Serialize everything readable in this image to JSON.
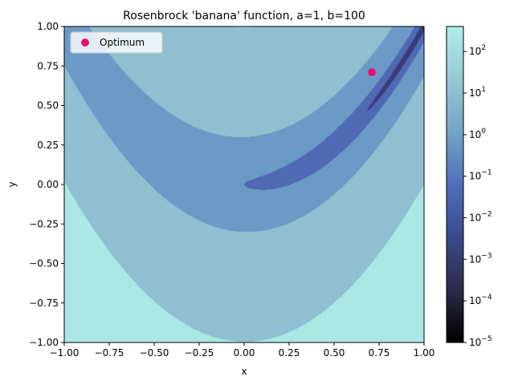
{
  "chart_data": {
    "type": "contour",
    "title": "Rosenbrock 'banana' function, a=1, b=100",
    "xlabel": "x",
    "ylabel": "y",
    "xlim": [
      -1.0,
      1.0
    ],
    "ylim": [
      -1.0,
      1.0
    ],
    "function": {
      "name": "rosenbrock",
      "a": 1,
      "b": 100
    },
    "x_ticks": [
      "−1.00",
      "−0.75",
      "−0.50",
      "−0.25",
      "0.00",
      "0.25",
      "0.50",
      "0.75",
      "1.00"
    ],
    "y_ticks": [
      "−1.00",
      "−0.75",
      "−0.50",
      "−0.25",
      "0.00",
      "0.25",
      "0.50",
      "0.75",
      "1.00"
    ],
    "x_tick_values": [
      -1.0,
      -0.75,
      -0.5,
      -0.25,
      0.0,
      0.25,
      0.5,
      0.75,
      1.0
    ],
    "y_tick_values": [
      -1.0,
      -0.75,
      -0.5,
      -0.25,
      0.0,
      0.25,
      0.5,
      0.75,
      1.0
    ],
    "contour_levels": [
      0.01,
      0.1,
      1,
      10,
      100
    ],
    "level_colors": [
      "#3a3b7a",
      "#4f69b4",
      "#6c9ac6",
      "#8fbfd1",
      "#abe8e5"
    ],
    "colorbar": {
      "scale": "log",
      "min": 1e-05,
      "max": 400,
      "tick_values": [
        1e-05,
        0.0001,
        0.001,
        0.01,
        0.1,
        1,
        10,
        100
      ],
      "tick_labels": [
        {
          "base": "10",
          "exp": "−5"
        },
        {
          "base": "10",
          "exp": "−4"
        },
        {
          "base": "10",
          "exp": "−3"
        },
        {
          "base": "10",
          "exp": "−2"
        },
        {
          "base": "10",
          "exp": "−1"
        },
        {
          "base": "10",
          "exp": "0"
        },
        {
          "base": "10",
          "exp": "1"
        },
        {
          "base": "10",
          "exp": "2"
        }
      ],
      "gradient_colors": [
        "#000000",
        "#2b2a4a",
        "#3a4a8e",
        "#4f6fb9",
        "#73a4c8",
        "#96c9d4",
        "#aeeeea"
      ]
    },
    "points": [
      {
        "name": "Optimum",
        "x": 0.71,
        "y": 0.71,
        "color": "#e8106e"
      }
    ],
    "legend": {
      "position": "upper-left",
      "entries": [
        "Optimum"
      ]
    }
  }
}
